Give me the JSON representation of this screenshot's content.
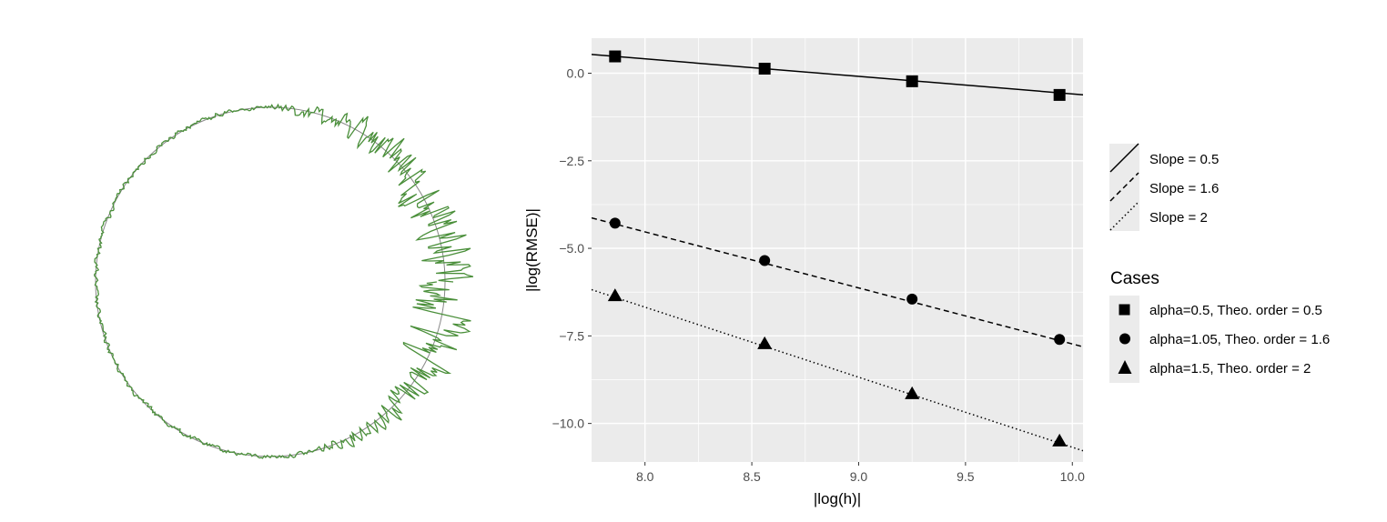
{
  "left_figure": {
    "type": "radial-noise",
    "description_label": "",
    "trace_color": "#4a8f3a",
    "circle_color": "#888888"
  },
  "chart_data": {
    "type": "line",
    "title": "",
    "xlabel": "|log(h)|",
    "ylabel": "|log(RMSE)|",
    "xlim": [
      7.75,
      10.05
    ],
    "ylim": [
      -11.1,
      1.0
    ],
    "xticks": [
      8.0,
      8.5,
      9.0,
      9.5,
      10.0
    ],
    "xtick_labels": [
      "8.0",
      "8.5",
      "9.0",
      "9.5",
      "10.0"
    ],
    "yticks": [
      0.0,
      -2.5,
      -5.0,
      -7.5,
      -10.0
    ],
    "ytick_labels": [
      "0.0",
      "−2.5",
      "−5.0",
      "−7.5",
      "−10.0"
    ],
    "grid": true,
    "panel_color": "#ebebeb",
    "x": [
      7.86,
      8.56,
      9.25,
      9.94
    ],
    "series": [
      {
        "name": "alpha=0.5, Theo. order = 0.5",
        "shape": "square",
        "values": [
          0.48,
          0.13,
          -0.23,
          -0.62
        ],
        "line": {
          "name": "Slope = 0.5",
          "style": "solid",
          "intercept": 4.41,
          "slope": -0.5
        }
      },
      {
        "name": "alpha=1.05, Theo. order = 1.6",
        "shape": "circle",
        "values": [
          -4.28,
          -5.35,
          -6.45,
          -7.6
        ],
        "line": {
          "name": "Slope = 1.6",
          "style": "dashed",
          "intercept": 8.27,
          "slope": -1.6
        }
      },
      {
        "name": "alpha=1.5, Theo. order = 2",
        "shape": "triangle",
        "values": [
          -6.35,
          -7.72,
          -9.15,
          -10.5
        ],
        "line": {
          "name": "Slope = 2",
          "style": "dotted",
          "intercept": 9.32,
          "slope": -2.0
        }
      }
    ],
    "legend": {
      "position": "right",
      "lines_title": "",
      "lines": [
        "Slope = 0.5",
        "Slope = 1.6",
        "Slope = 2"
      ],
      "cases_title": "Cases",
      "cases": [
        "alpha=0.5, Theo. order = 0.5",
        "alpha=1.05, Theo. order = 1.6",
        "alpha=1.5, Theo. order = 2"
      ]
    }
  }
}
